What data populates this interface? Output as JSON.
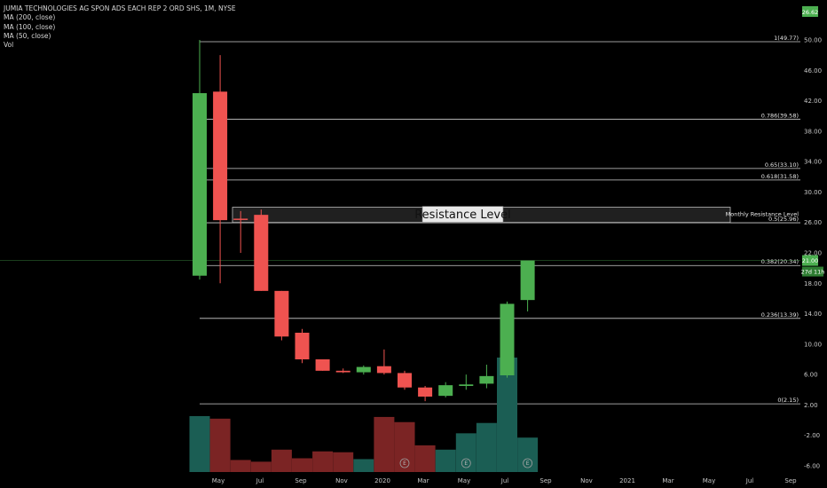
{
  "header": {
    "title": "JUMIA TECHNOLOGIES AG SPON ADS EACH REP 2 ORD SHS, 1M, NYSE",
    "indicators": [
      "MA (200, close)",
      "MA (100, close)",
      "MA (50, close)",
      "Vol"
    ]
  },
  "colors": {
    "up": "#4caf50",
    "down": "#ef5350",
    "vol_up": "#1b5e54",
    "vol_down": "#7b2424",
    "last_price_tag": "#4caf50",
    "top_tag": "#4caf50"
  },
  "tags": {
    "top_value": "26.62",
    "last_price": "21.00",
    "countdown": "27d 11h"
  },
  "chart_data": {
    "type": "candlestick",
    "timeframe": "1M",
    "ylim": [
      -7,
      52
    ],
    "yticks": [
      "-6.00",
      "-2.00",
      "2.00",
      "6.00",
      "10.00",
      "14.00",
      "18.00",
      "22.00",
      "26.00",
      "30.00",
      "34.00",
      "38.00",
      "42.00",
      "46.00",
      "50.00"
    ],
    "xticks": [
      "May",
      "Jul",
      "Sep",
      "Nov",
      "2020",
      "Mar",
      "May",
      "Jul",
      "Sep",
      "Nov",
      "2021",
      "Mar",
      "May",
      "Jul",
      "Sep"
    ],
    "candles": [
      {
        "o": 19.0,
        "h": 50.0,
        "l": 18.5,
        "c": 43.0
      },
      {
        "o": 43.2,
        "h": 48.0,
        "l": 18.0,
        "c": 26.3
      },
      {
        "o": 26.5,
        "h": 27.5,
        "l": 22.0,
        "c": 26.4
      },
      {
        "o": 27.0,
        "h": 27.7,
        "l": 17.0,
        "c": 17.0
      },
      {
        "o": 17.0,
        "h": 17.0,
        "l": 10.5,
        "c": 11.0
      },
      {
        "o": 11.5,
        "h": 12.0,
        "l": 7.5,
        "c": 8.0
      },
      {
        "o": 8.0,
        "h": 8.0,
        "l": 6.5,
        "c": 6.5
      },
      {
        "o": 6.5,
        "h": 6.8,
        "l": 6.2,
        "c": 6.3
      },
      {
        "o": 6.3,
        "h": 7.2,
        "l": 6.0,
        "c": 7.0
      },
      {
        "o": 7.1,
        "h": 9.3,
        "l": 6.0,
        "c": 6.2
      },
      {
        "o": 6.2,
        "h": 6.5,
        "l": 4.0,
        "c": 4.3
      },
      {
        "o": 4.3,
        "h": 4.5,
        "l": 2.5,
        "c": 3.1
      },
      {
        "o": 3.2,
        "h": 5.0,
        "l": 3.0,
        "c": 4.6
      },
      {
        "o": 4.5,
        "h": 6.0,
        "l": 4.0,
        "c": 4.7
      },
      {
        "o": 4.8,
        "h": 7.3,
        "l": 4.2,
        "c": 5.8
      },
      {
        "o": 5.9,
        "h": 15.6,
        "l": 5.6,
        "c": 15.3
      },
      {
        "o": 15.8,
        "h": 20.8,
        "l": 14.3,
        "c": 21.0
      }
    ],
    "volume": [
      {
        "v": 6.5,
        "up": true
      },
      {
        "v": 6.2,
        "up": false
      },
      {
        "v": 1.4,
        "up": false
      },
      {
        "v": 1.2,
        "up": false
      },
      {
        "v": 2.6,
        "up": false
      },
      {
        "v": 1.6,
        "up": false
      },
      {
        "v": 2.4,
        "up": false
      },
      {
        "v": 2.3,
        "up": false
      },
      {
        "v": 1.5,
        "up": true
      },
      {
        "v": 6.4,
        "up": false
      },
      {
        "v": 5.8,
        "up": false
      },
      {
        "v": 3.1,
        "up": false
      },
      {
        "v": 2.6,
        "up": true
      },
      {
        "v": 4.5,
        "up": true
      },
      {
        "v": 5.7,
        "up": true
      },
      {
        "v": 13.3,
        "up": true
      },
      {
        "v": 4.0,
        "up": true
      }
    ],
    "earnings_markers": [
      10,
      13,
      16
    ],
    "earnings_label": "E",
    "fib_levels": [
      {
        "value": 49.77,
        "label": "1(49.77)"
      },
      {
        "value": 39.58,
        "label": "0.786(39.58)"
      },
      {
        "value": 33.1,
        "label": "0.65(33.10)"
      },
      {
        "value": 31.58,
        "label": "0.618(31.58)"
      },
      {
        "value": 25.96,
        "label": "0.5(25.96)"
      },
      {
        "value": 20.34,
        "label": "0.382(20.34)"
      },
      {
        "value": 13.39,
        "label": "0.236(13.39)"
      },
      {
        "value": 2.15,
        "label": "0(2.15)"
      }
    ],
    "resistance_zone": {
      "low": 26.0,
      "high": 28.0,
      "label": "Resistance Level",
      "right_label": "Monthly Resistance Level"
    },
    "last_price": 21.0
  }
}
